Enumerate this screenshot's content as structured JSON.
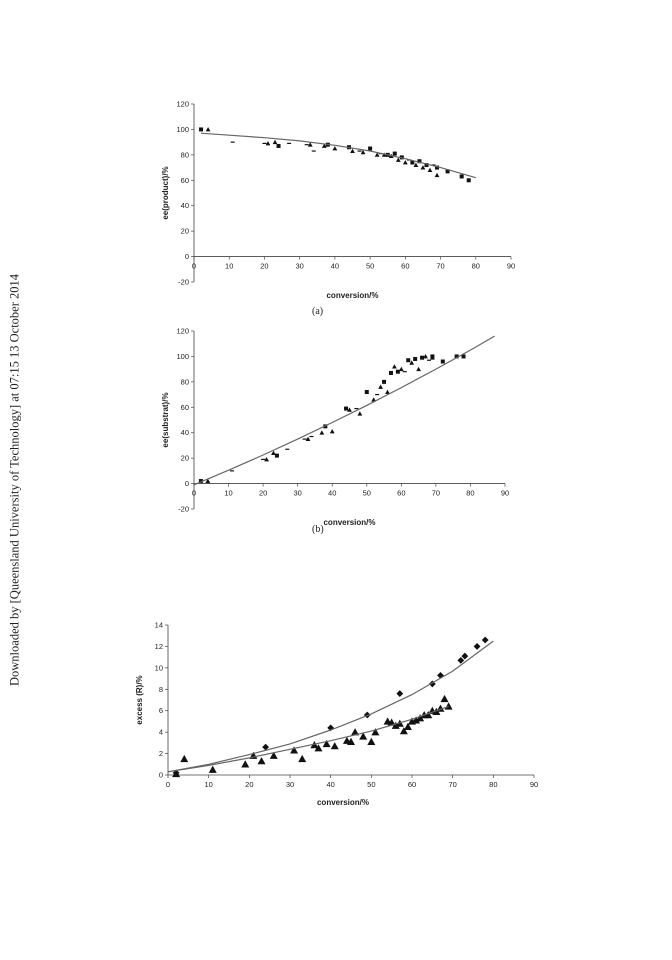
{
  "sidebar_note": "Downloaded by [Queensland University of Technology] at 07:15 13 October 2014",
  "captions": [
    "(a)",
    "(b)"
  ],
  "chart_data": [
    {
      "type": "scatter",
      "xlabel": "conversion/%",
      "ylabel": "ee(product)/%",
      "xlim": [
        0,
        90
      ],
      "ylim": [
        -20,
        120
      ],
      "xticks": [
        0,
        10,
        20,
        30,
        40,
        50,
        60,
        70,
        80,
        90
      ],
      "yticks": [
        -20,
        0,
        20,
        40,
        60,
        80,
        100,
        120
      ],
      "grid": false,
      "series": [
        {
          "marker": "square",
          "points": [
            [
              2,
              100
            ],
            [
              24,
              87
            ],
            [
              38,
              88
            ],
            [
              44,
              86
            ],
            [
              50,
              85
            ],
            [
              55,
              80
            ],
            [
              57,
              81
            ],
            [
              59,
              78
            ],
            [
              62,
              74
            ],
            [
              64,
              75
            ],
            [
              66,
              72
            ],
            [
              69,
              70
            ],
            [
              72,
              67
            ],
            [
              76,
              63
            ],
            [
              78,
              60
            ]
          ]
        },
        {
          "marker": "triangle",
          "points": [
            [
              4,
              100
            ],
            [
              21,
              89
            ],
            [
              23,
              90
            ],
            [
              33,
              88
            ],
            [
              37,
              87
            ],
            [
              40,
              85
            ],
            [
              45,
              83
            ],
            [
              48,
              82
            ],
            [
              52,
              80
            ],
            [
              54,
              80
            ],
            [
              56,
              79
            ],
            [
              58,
              76
            ],
            [
              60,
              74
            ],
            [
              63,
              72
            ],
            [
              65,
              70
            ],
            [
              67,
              68
            ],
            [
              69,
              64
            ]
          ]
        },
        {
          "marker": "dash",
          "points": [
            [
              11,
              90
            ],
            [
              20,
              89
            ],
            [
              27,
              89
            ],
            [
              32,
              88
            ],
            [
              34,
              83
            ],
            [
              47,
              83
            ],
            [
              53,
              81
            ],
            [
              61,
              76
            ],
            [
              68,
              72
            ]
          ]
        },
        {
          "marker": "line",
          "points": [
            [
              2,
              97
            ],
            [
              10,
              95.5
            ],
            [
              20,
              93.5
            ],
            [
              30,
              91
            ],
            [
              40,
              87.5
            ],
            [
              50,
              83
            ],
            [
              60,
              77
            ],
            [
              70,
              70
            ],
            [
              80,
              62
            ]
          ]
        }
      ]
    },
    {
      "type": "scatter",
      "xlabel": "conversion/%",
      "ylabel": "ee(substrat)/%",
      "xlim": [
        0,
        90
      ],
      "ylim": [
        -20,
        120
      ],
      "xticks": [
        0,
        10,
        20,
        30,
        40,
        50,
        60,
        70,
        80,
        90
      ],
      "yticks": [
        -20,
        0,
        20,
        40,
        60,
        80,
        100,
        120
      ],
      "grid": false,
      "series": [
        {
          "marker": "square",
          "points": [
            [
              2,
              2
            ],
            [
              24,
              22
            ],
            [
              38,
              45
            ],
            [
              44,
              59
            ],
            [
              50,
              72
            ],
            [
              55,
              80
            ],
            [
              57,
              87
            ],
            [
              59,
              88
            ],
            [
              62,
              97
            ],
            [
              64,
              98
            ],
            [
              66,
              99
            ],
            [
              69,
              100
            ],
            [
              72,
              96
            ],
            [
              76,
              100
            ],
            [
              78,
              100
            ]
          ]
        },
        {
          "marker": "triangle",
          "points": [
            [
              4,
              2
            ],
            [
              21,
              19
            ],
            [
              23,
              24
            ],
            [
              33,
              35
            ],
            [
              37,
              40
            ],
            [
              40,
              41
            ],
            [
              45,
              58
            ],
            [
              48,
              55
            ],
            [
              52,
              66
            ],
            [
              54,
              76
            ],
            [
              56,
              72
            ],
            [
              58,
              92
            ],
            [
              60,
              90
            ],
            [
              63,
              95
            ],
            [
              65,
              90
            ],
            [
              67,
              100
            ],
            [
              69,
              99
            ]
          ]
        },
        {
          "marker": "dash",
          "points": [
            [
              11,
              10
            ],
            [
              20,
              19
            ],
            [
              27,
              27
            ],
            [
              32,
              35
            ],
            [
              34,
              37
            ],
            [
              47,
              59
            ],
            [
              53,
              70
            ],
            [
              61,
              88
            ],
            [
              68,
              97
            ]
          ]
        },
        {
          "marker": "line",
          "points": [
            [
              0,
              -1
            ],
            [
              10,
              10.5
            ],
            [
              20,
              22.5
            ],
            [
              30,
              35
            ],
            [
              40,
              48
            ],
            [
              50,
              61.5
            ],
            [
              60,
              75.5
            ],
            [
              70,
              90
            ],
            [
              80,
              105
            ],
            [
              87,
              116
            ]
          ]
        }
      ]
    },
    {
      "type": "scatter",
      "xlabel": "conversion/%",
      "ylabel": "excess (R)/%",
      "xlim": [
        0,
        90
      ],
      "ylim": [
        0,
        14
      ],
      "xticks": [
        0,
        10,
        20,
        30,
        40,
        50,
        60,
        70,
        80,
        90
      ],
      "yticks": [
        0,
        2,
        4,
        6,
        8,
        10,
        12,
        14
      ],
      "grid": false,
      "series": [
        {
          "marker": "diamond",
          "points": [
            [
              2,
              0.2
            ],
            [
              24,
              2.6
            ],
            [
              40,
              4.4
            ],
            [
              49,
              5.6
            ],
            [
              57,
              7.6
            ],
            [
              65,
              8.5
            ],
            [
              67,
              9.3
            ],
            [
              72,
              10.7
            ],
            [
              73,
              11.1
            ],
            [
              76,
              12.0
            ],
            [
              78,
              12.6
            ]
          ]
        },
        {
          "marker": "triangle",
          "points": [
            [
              2,
              0.1
            ],
            [
              4,
              1.5
            ],
            [
              11,
              0.5
            ],
            [
              19,
              1.0
            ],
            [
              21,
              1.8
            ],
            [
              23,
              1.3
            ],
            [
              26,
              1.8
            ],
            [
              31,
              2.3
            ],
            [
              33,
              1.5
            ],
            [
              36,
              2.8
            ],
            [
              37,
              2.5
            ],
            [
              39,
              2.9
            ],
            [
              41,
              2.7
            ],
            [
              44,
              3.2
            ],
            [
              45,
              3.1
            ],
            [
              46,
              4.0
            ],
            [
              48,
              3.6
            ],
            [
              50,
              3.1
            ],
            [
              51,
              4.0
            ],
            [
              54,
              5.0
            ],
            [
              55,
              4.9
            ],
            [
              56,
              4.6
            ],
            [
              57,
              4.8
            ],
            [
              58,
              4.1
            ],
            [
              59,
              4.5
            ],
            [
              60,
              5.0
            ],
            [
              61,
              5.1
            ],
            [
              62,
              5.3
            ],
            [
              63,
              5.6
            ],
            [
              64,
              5.6
            ],
            [
              65,
              6.0
            ],
            [
              66,
              5.9
            ],
            [
              67,
              6.2
            ],
            [
              68,
              7.1
            ],
            [
              69,
              6.4
            ]
          ]
        },
        {
          "marker": "line",
          "points": [
            [
              0,
              0.3
            ],
            [
              10,
              1.0
            ],
            [
              20,
              1.9
            ],
            [
              30,
              2.9
            ],
            [
              40,
              4.2
            ],
            [
              50,
              5.7
            ],
            [
              60,
              7.5
            ],
            [
              70,
              9.7
            ],
            [
              80,
              12.5
            ]
          ]
        },
        {
          "marker": "line",
          "points": [
            [
              0,
              0.3
            ],
            [
              10,
              0.9
            ],
            [
              20,
              1.6
            ],
            [
              30,
              2.4
            ],
            [
              40,
              3.2
            ],
            [
              50,
              4.1
            ],
            [
              60,
              5.2
            ],
            [
              69,
              6.4
            ]
          ]
        }
      ]
    }
  ]
}
